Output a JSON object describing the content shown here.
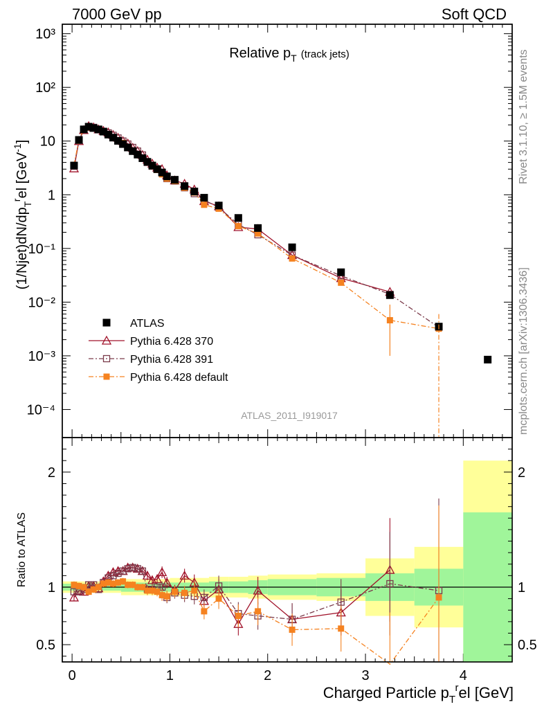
{
  "header": {
    "left": "7000 GeV pp",
    "right": "Soft QCD"
  },
  "side_text": {
    "rivet": "Rivet 3.1.10, ≥ 1.5M events",
    "mcplots": "mcplots.cern.ch [arXiv:1306.3436]"
  },
  "chart_data": [
    {
      "type": "scatter",
      "title": "Relative p",
      "title_sub": "T",
      "title_note": "(track jets)",
      "ylabel": "(1/Njet)dN/dp",
      "ylabel_sub": "T",
      "ylabel_sup": "r",
      "ylabel_tail": "el [GeV",
      "ylabel_exp": "-1",
      "ylabel_close": "]",
      "watermark": "ATLAS_2011_I919017",
      "yscale": "log",
      "xlim": [
        -0.1,
        4.5
      ],
      "ylim": [
        3e-05,
        1500
      ],
      "ytick_labels": [
        "10⁻⁴",
        "10⁻³",
        "10⁻²",
        "10⁻¹",
        "1",
        "10",
        "10²",
        "10³"
      ],
      "legend_placement": "lower-left",
      "series": [
        {
          "name": "ATLAS",
          "color": "#000000",
          "marker": "square-filled",
          "x": [
            0.02,
            0.07,
            0.12,
            0.17,
            0.22,
            0.27,
            0.32,
            0.37,
            0.42,
            0.47,
            0.52,
            0.57,
            0.62,
            0.67,
            0.72,
            0.77,
            0.82,
            0.87,
            0.92,
            0.97,
            1.05,
            1.15,
            1.25,
            1.35,
            1.5,
            1.7,
            1.9,
            2.25,
            2.75,
            3.25,
            3.75,
            4.25
          ],
          "y": [
            3.5,
            10.5,
            16.5,
            18.5,
            17.5,
            16.5,
            15,
            13.2,
            11.6,
            10.1,
            8.8,
            7.6,
            6.5,
            5.6,
            4.8,
            4.1,
            3.5,
            3.0,
            2.6,
            2.2,
            1.9,
            1.45,
            1.15,
            0.88,
            0.63,
            0.37,
            0.24,
            0.105,
            0.036,
            0.0135,
            0.0035,
            0.00085
          ]
        },
        {
          "name": "Pythia 6.428 370",
          "color": "#a0122a",
          "marker": "triangle-open",
          "line": "solid",
          "x": [
            0.02,
            0.07,
            0.12,
            0.17,
            0.22,
            0.27,
            0.32,
            0.37,
            0.42,
            0.47,
            0.52,
            0.57,
            0.62,
            0.67,
            0.72,
            0.77,
            0.82,
            0.87,
            0.92,
            0.97,
            1.05,
            1.15,
            1.25,
            1.35,
            1.5,
            1.7,
            1.9,
            2.25,
            2.75,
            3.25
          ],
          "y": [
            3.1,
            10,
            16,
            19,
            18,
            16.5,
            15.5,
            14.5,
            13,
            11.5,
            10,
            9,
            7.5,
            6.5,
            5.5,
            4.5,
            3.8,
            3.2,
            3.0,
            2.3,
            1.85,
            1.6,
            1.25,
            0.76,
            0.61,
            0.25,
            0.23,
            0.075,
            0.028,
            0.0155
          ]
        },
        {
          "name": "Pythia 6.428 391",
          "color": "#7a3a4a",
          "marker": "square-open",
          "line": "dash-dot",
          "x": [
            0.02,
            0.07,
            0.12,
            0.17,
            0.22,
            0.27,
            0.32,
            0.37,
            0.42,
            0.47,
            0.52,
            0.57,
            0.62,
            0.67,
            0.72,
            0.77,
            0.82,
            0.87,
            0.92,
            0.97,
            1.05,
            1.15,
            1.25,
            1.35,
            1.5,
            1.7,
            1.9,
            2.25,
            2.75,
            3.25,
            3.75
          ],
          "y": [
            3.4,
            10.3,
            16.5,
            18.5,
            18,
            16.2,
            15.2,
            14.2,
            12.8,
            11.4,
            10,
            8.8,
            7.6,
            6.5,
            5.5,
            4.0,
            3.4,
            3.0,
            2.6,
            2.0,
            1.8,
            1.35,
            1.05,
            0.8,
            0.58,
            0.28,
            0.18,
            0.075,
            0.031,
            0.014,
            0.0034
          ]
        },
        {
          "name": "Pythia 6.428 default",
          "color": "#f58220",
          "marker": "square-filled-small",
          "line": "dash-dot",
          "x": [
            0.02,
            0.07,
            0.12,
            0.17,
            0.22,
            0.27,
            0.32,
            0.37,
            0.42,
            0.47,
            0.52,
            0.57,
            0.62,
            0.67,
            0.72,
            0.77,
            0.82,
            0.87,
            0.92,
            0.97,
            1.05,
            1.15,
            1.25,
            1.35,
            1.5,
            1.7,
            1.9,
            2.25,
            2.75,
            3.25,
            3.75
          ],
          "y": [
            3.6,
            10.6,
            16.5,
            17.8,
            17.2,
            16.5,
            15.2,
            13.5,
            11.8,
            10.3,
            9.2,
            7.8,
            6.6,
            5.6,
            4.8,
            4.0,
            3.4,
            2.9,
            2.4,
            2.0,
            1.8,
            1.35,
            1.1,
            0.65,
            0.55,
            0.26,
            0.19,
            0.065,
            0.023,
            0.0046,
            0.0032
          ]
        }
      ]
    },
    {
      "type": "scatter",
      "ylabel": "Ratio to ATLAS",
      "xlabel": "Charged Particle p",
      "xlabel_sub": "T",
      "xlabel_sup": "r",
      "xlabel_tail": "el [GeV]",
      "xlim": [
        -0.1,
        4.5
      ],
      "ylim": [
        0.35,
        2.3
      ],
      "xtick_labels": [
        "0",
        "1",
        "2",
        "3",
        "4"
      ],
      "ytick_labels": [
        "0.5",
        "1",
        "2"
      ],
      "reference_line": 1,
      "bands": {
        "edges": [
          -0.1,
          0.5,
          1.0,
          1.1,
          1.3,
          1.4,
          1.6,
          1.8,
          2.0,
          2.5,
          3.0,
          3.5,
          4.0,
          4.5
        ],
        "inner_low": [
          0.97,
          0.96,
          0.96,
          0.96,
          0.96,
          0.95,
          0.95,
          0.94,
          0.93,
          0.92,
          0.88,
          0.84,
          0.35
        ],
        "inner_high": [
          1.03,
          1.04,
          1.04,
          1.04,
          1.04,
          1.05,
          1.05,
          1.06,
          1.07,
          1.08,
          1.12,
          1.16,
          1.65
        ],
        "outer_low": [
          0.95,
          0.93,
          0.92,
          0.92,
          0.92,
          0.91,
          0.91,
          0.9,
          0.89,
          0.88,
          0.75,
          0.65,
          0.36
        ],
        "outer_high": [
          1.05,
          1.07,
          1.08,
          1.08,
          1.08,
          1.09,
          1.09,
          1.1,
          1.11,
          1.12,
          1.25,
          1.35,
          2.1
        ],
        "inner_color": "#a0f59a",
        "outer_color": "#ffff99"
      },
      "series": [
        {
          "name": "Pythia 6.428 370",
          "color": "#a0122a",
          "marker": "triangle-open",
          "line": "solid",
          "x": [
            0.02,
            0.07,
            0.12,
            0.17,
            0.22,
            0.27,
            0.32,
            0.37,
            0.42,
            0.47,
            0.52,
            0.57,
            0.62,
            0.67,
            0.72,
            0.77,
            0.82,
            0.87,
            0.92,
            0.97,
            1.05,
            1.15,
            1.25,
            1.35,
            1.5,
            1.7,
            1.9,
            2.25,
            2.75,
            3.25
          ],
          "y": [
            0.91,
            0.97,
            0.96,
            1.01,
            1.01,
            0.99,
            1.05,
            1.1,
            1.13,
            1.14,
            1.14,
            1.17,
            1.17,
            1.16,
            1.14,
            1.1,
            1.06,
            1.07,
            1.13,
            1.04,
            0.97,
            1.1,
            1.04,
            0.88,
            0.98,
            0.68,
            0.97,
            0.72,
            0.78,
            1.15
          ]
        },
        {
          "name": "Pythia 6.428 391",
          "color": "#7a3a4a",
          "marker": "square-open",
          "line": "dash-dot",
          "x": [
            0.02,
            0.07,
            0.12,
            0.17,
            0.22,
            0.27,
            0.32,
            0.37,
            0.42,
            0.47,
            0.52,
            0.57,
            0.62,
            0.67,
            0.72,
            0.77,
            0.82,
            0.87,
            0.92,
            0.97,
            1.05,
            1.15,
            1.25,
            1.35,
            1.5,
            1.7,
            1.9,
            2.25,
            2.75,
            3.25,
            3.75
          ],
          "y": [
            0.96,
            0.96,
            0.98,
            1.02,
            1.02,
            0.98,
            1.04,
            1.08,
            1.1,
            1.12,
            1.14,
            1.16,
            1.17,
            1.16,
            1.14,
            0.98,
            0.98,
            1.0,
            1.0,
            0.91,
            0.95,
            0.93,
            0.92,
            0.91,
            1.01,
            0.77,
            0.75,
            0.72,
            0.87,
            1.03,
            0.97
          ]
        },
        {
          "name": "Pythia 6.428 default",
          "color": "#f58220",
          "marker": "square-filled-small",
          "line": "dash-dot",
          "x": [
            0.02,
            0.07,
            0.12,
            0.17,
            0.22,
            0.27,
            0.32,
            0.37,
            0.42,
            0.47,
            0.52,
            0.57,
            0.62,
            0.67,
            0.72,
            0.77,
            0.82,
            0.87,
            0.92,
            0.97,
            1.05,
            1.15,
            1.25,
            1.35,
            1.5,
            1.7,
            1.9,
            2.25,
            2.75,
            3.25,
            3.75
          ],
          "y": [
            1.02,
            1.01,
            1.0,
            0.96,
            0.98,
            1.0,
            1.03,
            1.04,
            1.03,
            1.04,
            1.05,
            1.02,
            1.02,
            1.0,
            1.0,
            0.97,
            0.97,
            0.96,
            0.93,
            0.92,
            0.96,
            0.95,
            0.97,
            0.79,
            0.9,
            0.75,
            0.79,
            0.63,
            0.64,
            0.33,
            0.91
          ]
        }
      ]
    }
  ]
}
